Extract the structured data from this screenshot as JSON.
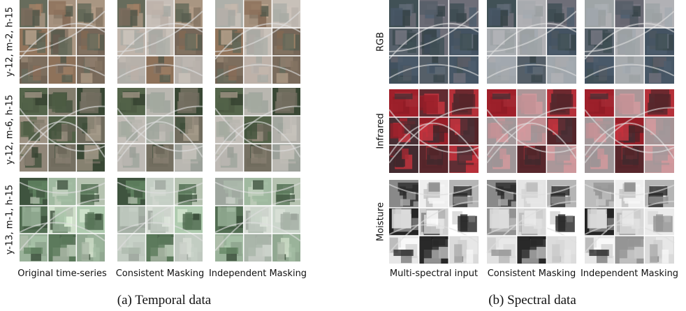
{
  "temporal": {
    "row_labels": [
      "y-12, m-2, h-15",
      "y-12, m-6, h-15",
      "y-13, m-1, h-15"
    ],
    "column_labels": [
      "Original time-series",
      "Consistent Masking",
      "Independent Masking"
    ],
    "caption": "(a) Temporal data"
  },
  "spectral": {
    "row_labels": [
      "RGB",
      "Infrared",
      "Moisture"
    ],
    "column_labels": [
      "Multi-spectral input",
      "Consistent Masking",
      "Independent Masking"
    ],
    "caption": "(b) Spectral data"
  }
}
